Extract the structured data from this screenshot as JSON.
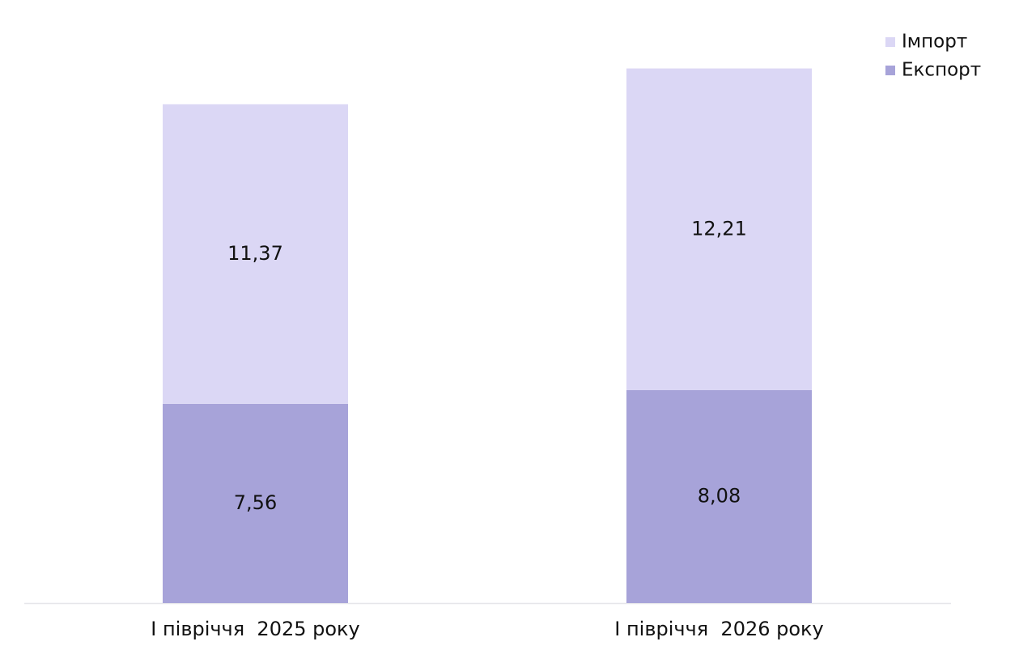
{
  "chart_data": {
    "type": "stacked-bar",
    "categories": [
      "І півріччя  2025 року",
      "І півріччя  2026 року"
    ],
    "series": [
      {
        "name": "Експорт",
        "color": "#a7a3d9",
        "values": [
          7.56,
          8.08
        ],
        "value_labels": [
          "7,56",
          "8,08"
        ]
      },
      {
        "name": "Імпорт",
        "color": "#dbd7f5",
        "values": [
          11.37,
          12.21
        ],
        "value_labels": [
          "11,37",
          "12,21"
        ]
      }
    ],
    "legend": "top-right"
  }
}
